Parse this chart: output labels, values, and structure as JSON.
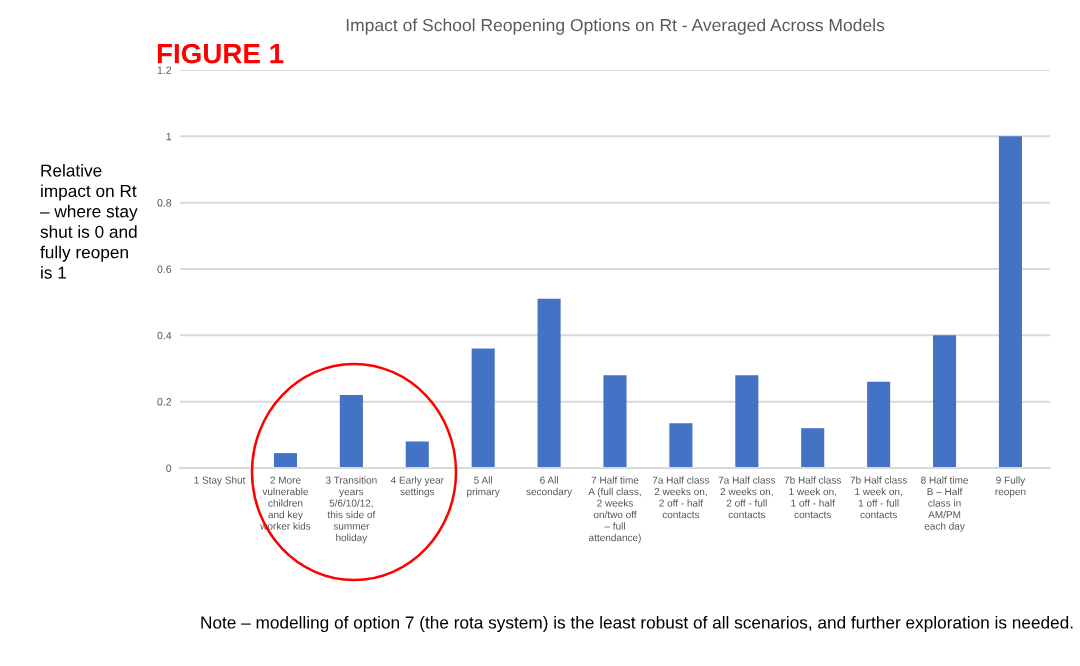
{
  "chart_data": {
    "type": "bar",
    "title": "Impact of School Reopening Options on Rt - Averaged Across Models",
    "annotations": [
      "FIGURE 1",
      "Note – modelling of option 7 (the rota system) is the least robust of all scenarios, and further exploration is needed.",
      "Relative\nimpact on Rt\n– where stay\nshut is 0 and\nfully reopen\nis 1"
    ],
    "categories": [
      "1 Stay Shut",
      "2 More\nvulnerable\nchildren\nand key\nworker kids",
      "3 Transition\nyears\n5/6/10/12,\nthis side of\nsummer\nholiday",
      "4 Early year\nsettings",
      "5 All\nprimary",
      "6 All\nsecondary",
      "7 Half time\nA (full class,\n2 weeks\non/two off\n– full\nattendance)",
      "7a Half class\n2 weeks on,\n2 off - half\ncontacts",
      "7a Half class\n2 weeks on,\n2 off - full\ncontacts",
      "7b Half class\n1 week on,\n1 off - half\ncontacts",
      "7b Half class\n1 week on,\n1 off - full\ncontacts",
      "8 Half time\nB – Half\nclass in\nAM/PM\neach day",
      "9 Fully\nreopen"
    ],
    "values": [
      0,
      0.045,
      0.22,
      0.08,
      0.36,
      0.51,
      0.28,
      0.135,
      0.28,
      0.12,
      0.26,
      0.4,
      1.0
    ],
    "color": "#4472c4",
    "ylim": [
      0,
      1.2
    ],
    "yticks": [
      0,
      0.2,
      0.4,
      0.6,
      0.8,
      1,
      1.2
    ],
    "grid": "y"
  }
}
